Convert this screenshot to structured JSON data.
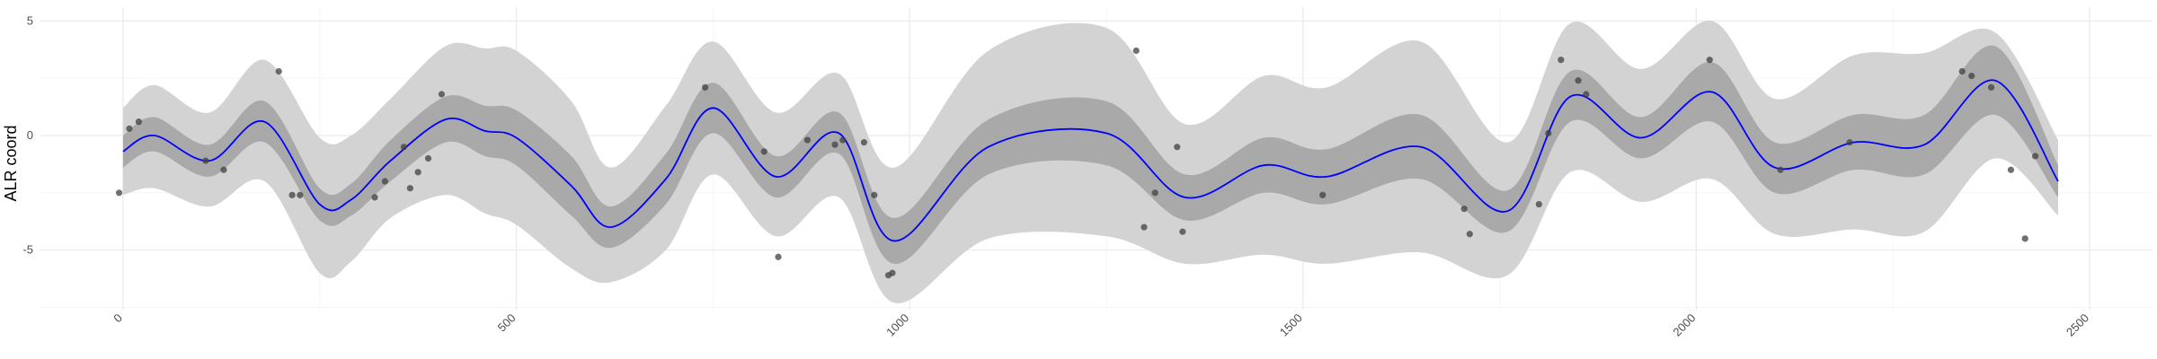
{
  "chart_data": {
    "type": "line",
    "title": "",
    "xlabel": "",
    "ylabel": "ALR coord",
    "xlim": [
      -105,
      2580
    ],
    "ylim": [
      -7.6,
      5.6
    ],
    "x_ticks": [
      0,
      500,
      1000,
      1500,
      2000,
      2500
    ],
    "x_tick_labels": [
      "0",
      "500",
      "1000",
      "1500",
      "2000",
      "2500"
    ],
    "y_ticks": [
      -5,
      0,
      5
    ],
    "y_tick_labels": [
      "-5",
      "0",
      "5"
    ],
    "grid": true,
    "legend": "none",
    "colors": {
      "line": "#0000ff",
      "inner_band": "#a9a9a9",
      "outer_band": "#d3d3d3",
      "points": "#404040",
      "grid_major": "#ebebeb",
      "grid_minor": "#f5f5f5"
    },
    "series": [
      {
        "role": "mean",
        "x": [
          0,
          40,
          110,
          180,
          250,
          290,
          340,
          410,
          460,
          500,
          570,
          620,
          690,
          750,
          830,
          910,
          980,
          1100,
          1250,
          1350,
          1450,
          1530,
          1650,
          1760,
          1840,
          1930,
          2020,
          2100,
          2200,
          2290,
          2380,
          2460
        ],
        "y": [
          -0.7,
          0.0,
          -1.1,
          0.6,
          -3.0,
          -2.8,
          -1.1,
          0.7,
          0.2,
          -0.1,
          -2.2,
          -4.0,
          -1.9,
          1.2,
          -1.8,
          0.1,
          -4.6,
          -0.5,
          0.1,
          -2.7,
          -1.3,
          -1.8,
          -0.5,
          -3.3,
          1.7,
          -0.1,
          1.9,
          -1.4,
          -0.3,
          -0.4,
          2.4,
          -2.0
        ]
      },
      {
        "role": "inner_band",
        "x": [
          0,
          40,
          110,
          180,
          250,
          290,
          340,
          410,
          460,
          500,
          570,
          620,
          690,
          750,
          830,
          910,
          980,
          1100,
          1250,
          1350,
          1450,
          1530,
          1650,
          1760,
          1840,
          1930,
          2020,
          2100,
          2200,
          2290,
          2380,
          2460
        ],
        "lower": [
          -1.4,
          -0.7,
          -1.8,
          -0.3,
          -3.7,
          -3.5,
          -2.0,
          -0.3,
          -0.9,
          -1.3,
          -3.5,
          -4.9,
          -3.0,
          0.1,
          -2.7,
          -0.8,
          -5.6,
          -1.7,
          -1.3,
          -3.7,
          -2.5,
          -3.0,
          -1.9,
          -4.2,
          0.6,
          -1.0,
          0.6,
          -2.5,
          -1.5,
          -1.7,
          0.9,
          -2.7
        ],
        "upper": [
          0.0,
          0.8,
          -0.4,
          1.5,
          -2.3,
          -2.1,
          -0.2,
          1.7,
          1.3,
          1.1,
          -0.9,
          -3.1,
          -0.8,
          2.3,
          -0.9,
          1.0,
          -3.6,
          0.7,
          1.5,
          -1.7,
          -0.1,
          -0.6,
          0.9,
          -2.4,
          2.8,
          0.8,
          3.2,
          -0.3,
          0.9,
          0.9,
          3.9,
          -1.3
        ]
      },
      {
        "role": "outer_band",
        "x": [
          0,
          40,
          110,
          180,
          250,
          290,
          340,
          410,
          460,
          500,
          570,
          620,
          690,
          750,
          830,
          910,
          980,
          1100,
          1250,
          1350,
          1450,
          1530,
          1650,
          1760,
          1840,
          1930,
          2020,
          2100,
          2200,
          2290,
          2380,
          2460
        ],
        "lower": [
          -2.6,
          -2.3,
          -3.1,
          -2.0,
          -6.0,
          -5.5,
          -3.6,
          -2.6,
          -3.4,
          -3.9,
          -5.8,
          -6.4,
          -5.0,
          -1.7,
          -4.4,
          -2.7,
          -7.3,
          -4.5,
          -4.4,
          -5.6,
          -5.2,
          -5.6,
          -5.1,
          -6.1,
          -1.6,
          -2.9,
          -1.9,
          -4.3,
          -4.1,
          -4.2,
          -1.0,
          -3.5
        ],
        "upper": [
          1.2,
          2.2,
          1.0,
          3.3,
          -0.1,
          0.0,
          1.6,
          3.9,
          3.8,
          3.7,
          1.5,
          -1.4,
          1.3,
          4.1,
          1.0,
          2.7,
          -1.4,
          3.7,
          4.7,
          0.5,
          2.6,
          2.1,
          4.1,
          -0.3,
          4.9,
          2.9,
          5.0,
          1.6,
          3.5,
          3.6,
          4.5,
          -0.2
        ]
      }
    ],
    "points": {
      "x": [
        -5,
        8,
        20,
        105,
        128,
        198,
        215,
        225,
        320,
        333,
        357,
        365,
        375,
        388,
        405,
        740,
        815,
        833,
        870,
        905,
        915,
        942,
        955,
        973,
        978,
        1288,
        1298,
        1312,
        1340,
        1347,
        1525,
        1705,
        1712,
        1800,
        1812,
        1828,
        1850,
        1860,
        2017,
        2107,
        2195,
        2338,
        2350,
        2375,
        2400,
        2418,
        2431
      ],
      "y": [
        -2.5,
        0.3,
        0.6,
        -1.1,
        -1.5,
        2.8,
        -2.6,
        -2.6,
        -2.7,
        -2.0,
        -0.5,
        -2.3,
        -1.6,
        -1.0,
        1.8,
        2.1,
        -0.7,
        -5.3,
        -0.2,
        -0.4,
        -0.2,
        -0.3,
        -2.6,
        -6.1,
        -6.0,
        3.7,
        -4.0,
        -2.5,
        -0.5,
        -4.2,
        -2.6,
        -3.2,
        -4.3,
        -3.0,
        0.1,
        3.3,
        2.4,
        1.8,
        3.3,
        -1.5,
        -0.3,
        2.8,
        2.6,
        2.1,
        -1.5,
        -4.5,
        -0.9
      ]
    }
  }
}
